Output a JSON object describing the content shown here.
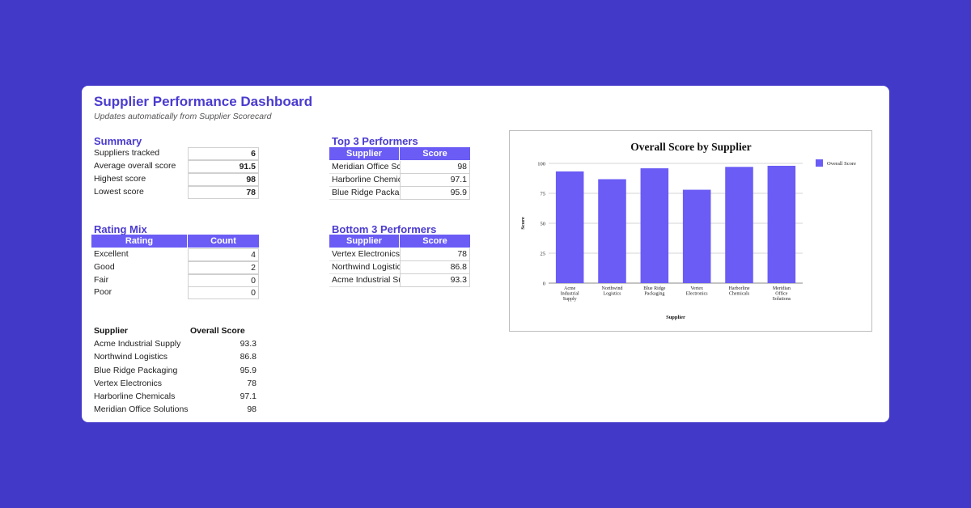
{
  "header": {
    "title": "Supplier Performance Dashboard",
    "subtitle": "Updates automatically from Supplier Scorecard"
  },
  "summary": {
    "title": "Summary",
    "rows": [
      {
        "label": "Suppliers tracked",
        "value": "6"
      },
      {
        "label": "Average overall score",
        "value": "91.5"
      },
      {
        "label": "Highest score",
        "value": "98"
      },
      {
        "label": "Lowest score",
        "value": "78"
      }
    ]
  },
  "rating_mix": {
    "title": "Rating Mix",
    "headers": [
      "Rating",
      "Count"
    ],
    "rows": [
      {
        "label": "Excellent",
        "value": "4"
      },
      {
        "label": "Good",
        "value": "2"
      },
      {
        "label": "Fair",
        "value": "0"
      },
      {
        "label": "Poor",
        "value": "0"
      }
    ]
  },
  "top3": {
    "title": "Top 3 Performers",
    "headers": [
      "Supplier",
      "Score"
    ],
    "rows": [
      {
        "name": "Meridian Office Sc",
        "score": "98"
      },
      {
        "name": "Harborline Chemic",
        "score": "97.1"
      },
      {
        "name": "Blue Ridge Packag",
        "score": "95.9"
      }
    ]
  },
  "bottom3": {
    "title": "Bottom 3 Performers",
    "headers": [
      "Supplier",
      "Score"
    ],
    "rows": [
      {
        "name": "Vertex Electronics",
        "score": "78"
      },
      {
        "name": "Northwind Logistic",
        "score": "86.8"
      },
      {
        "name": "Acme Industrial Su",
        "score": "93.3"
      }
    ]
  },
  "supplier_list": {
    "headers": [
      "Supplier",
      "Overall Score"
    ],
    "rows": [
      {
        "name": "Acme Industrial Supply",
        "score": "93.3"
      },
      {
        "name": "Northwind Logistics",
        "score": "86.8"
      },
      {
        "name": "Blue Ridge Packaging",
        "score": "95.9"
      },
      {
        "name": "Vertex Electronics",
        "score": "78"
      },
      {
        "name": "Harborline Chemicals",
        "score": "97.1"
      },
      {
        "name": "Meridian Office Solutions",
        "score": "98"
      }
    ]
  },
  "colors": {
    "background": "#4339c9",
    "accent": "#4a3bcf",
    "header_fill": "#6a5cf5",
    "bar": "#6a5cf5"
  },
  "chart_data": {
    "type": "bar",
    "title": "Overall Score by Supplier",
    "xlabel": "Supplier",
    "ylabel": "Score",
    "categories": [
      [
        "Acme",
        "Industrial",
        "Supply"
      ],
      [
        "Northwind",
        "Logistics"
      ],
      [
        "Blue Ridge",
        "Packaging"
      ],
      [
        "Vertex",
        "Electronics"
      ],
      [
        "Harborline",
        "Chemicals"
      ],
      [
        "Meridian",
        "Office",
        "Solutions"
      ]
    ],
    "series": [
      {
        "name": "Overall Score",
        "values": [
          93.3,
          86.8,
          95.9,
          78,
          97.1,
          98
        ]
      }
    ],
    "ylim": [
      0,
      100
    ],
    "yticks": [
      0,
      25,
      50,
      75,
      100
    ],
    "grid": true,
    "legend": "top-right"
  }
}
